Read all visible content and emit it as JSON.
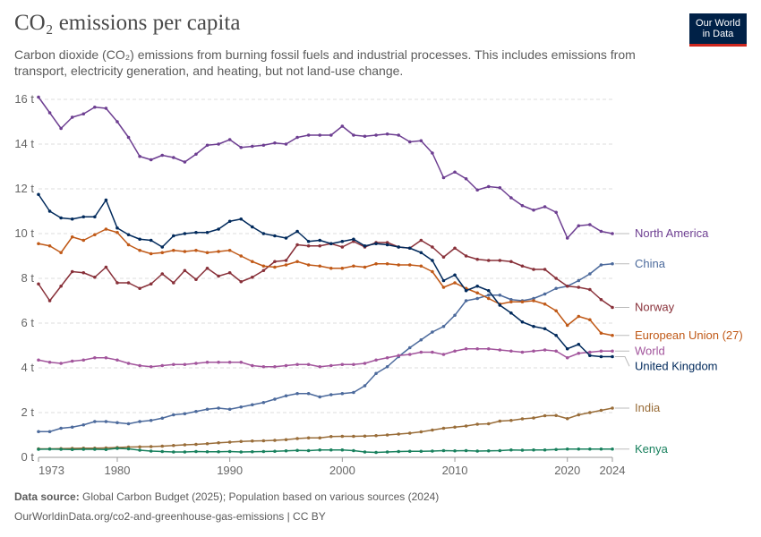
{
  "header": {
    "title": "CO₂ emissions per capita",
    "subtitle": "Carbon dioxide (CO₂) emissions from burning fossil fuels and industrial processes. This includes emissions from transport, electricity generation, and heating, but not land-use change.",
    "logo_line1": "Our World",
    "logo_line2": "in Data"
  },
  "footer": {
    "source_label": "Data source:",
    "source_text": "Global Carbon Budget (2025); Population based on various sources (2024)",
    "url_text": "OurWorldinData.org/co2-and-greenhouse-gas-emissions | CC BY"
  },
  "chart_data": {
    "type": "line",
    "title": "CO₂ emissions per capita",
    "xlabel": "",
    "ylabel": "",
    "xlim": [
      1973,
      2024
    ],
    "ylim": [
      0,
      16
    ],
    "x_ticks": [
      1973,
      1980,
      1990,
      2000,
      2010,
      2020,
      2024
    ],
    "y_ticks": [
      0,
      2,
      4,
      6,
      8,
      10,
      12,
      14,
      16
    ],
    "y_tick_labels": [
      "0 t",
      "2 t",
      "4 t",
      "6 t",
      "8 t",
      "10 t",
      "12 t",
      "14 t",
      "16 t"
    ],
    "grid": true,
    "legend": "right (direct labels)",
    "x": [
      1973,
      1974,
      1975,
      1976,
      1977,
      1978,
      1979,
      1980,
      1981,
      1982,
      1983,
      1984,
      1985,
      1986,
      1987,
      1988,
      1989,
      1990,
      1991,
      1992,
      1993,
      1994,
      1995,
      1996,
      1997,
      1998,
      1999,
      2000,
      2001,
      2002,
      2003,
      2004,
      2005,
      2006,
      2007,
      2008,
      2009,
      2010,
      2011,
      2012,
      2013,
      2014,
      2015,
      2016,
      2017,
      2018,
      2019,
      2020,
      2021,
      2022,
      2023,
      2024
    ],
    "series": [
      {
        "name": "North America",
        "color": "#6d3e91",
        "values": [
          16.1,
          15.4,
          14.7,
          15.2,
          15.35,
          15.65,
          15.6,
          15.0,
          14.3,
          13.45,
          13.3,
          13.5,
          13.4,
          13.2,
          13.55,
          13.95,
          14.0,
          14.2,
          13.85,
          13.9,
          13.95,
          14.05,
          14.0,
          14.3,
          14.4,
          14.4,
          14.4,
          14.8,
          14.4,
          14.35,
          14.4,
          14.45,
          14.4,
          14.1,
          14.15,
          13.6,
          12.5,
          12.75,
          12.45,
          11.95,
          12.1,
          12.05,
          11.6,
          11.25,
          11.05,
          11.2,
          10.95,
          9.8,
          10.35,
          10.4,
          10.1,
          10.0
        ]
      },
      {
        "name": "China",
        "color": "#4c6a9c",
        "values": [
          1.15,
          1.15,
          1.3,
          1.35,
          1.45,
          1.6,
          1.6,
          1.55,
          1.5,
          1.6,
          1.65,
          1.75,
          1.9,
          1.95,
          2.05,
          2.15,
          2.2,
          2.15,
          2.25,
          2.35,
          2.45,
          2.6,
          2.75,
          2.85,
          2.85,
          2.7,
          2.8,
          2.85,
          2.9,
          3.2,
          3.75,
          4.05,
          4.5,
          4.9,
          5.25,
          5.6,
          5.85,
          6.35,
          7.0,
          7.1,
          7.25,
          7.25,
          7.05,
          7.0,
          7.1,
          7.3,
          7.55,
          7.65,
          7.9,
          8.2,
          8.6,
          8.65
        ]
      },
      {
        "name": "Norway",
        "color": "#883039",
        "values": [
          7.75,
          7.0,
          7.65,
          8.3,
          8.25,
          8.05,
          8.5,
          7.8,
          7.8,
          7.55,
          7.75,
          8.2,
          7.8,
          8.35,
          7.95,
          8.45,
          8.1,
          8.25,
          7.85,
          8.05,
          8.35,
          8.75,
          8.8,
          9.5,
          9.45,
          9.45,
          9.55,
          9.4,
          9.65,
          9.4,
          9.6,
          9.6,
          9.4,
          9.35,
          9.7,
          9.4,
          8.95,
          9.35,
          9.0,
          8.85,
          8.8,
          8.8,
          8.75,
          8.55,
          8.4,
          8.4,
          8.0,
          7.65,
          7.6,
          7.5,
          7.05,
          6.7
        ]
      },
      {
        "name": "European Union (27)",
        "color": "#c05917",
        "values": [
          9.55,
          9.45,
          9.15,
          9.85,
          9.7,
          9.95,
          10.2,
          10.05,
          9.5,
          9.25,
          9.1,
          9.15,
          9.25,
          9.2,
          9.25,
          9.15,
          9.2,
          9.25,
          9.0,
          8.75,
          8.55,
          8.5,
          8.6,
          8.75,
          8.6,
          8.55,
          8.45,
          8.45,
          8.55,
          8.5,
          8.65,
          8.65,
          8.6,
          8.6,
          8.55,
          8.3,
          7.6,
          7.8,
          7.55,
          7.35,
          7.1,
          6.85,
          6.95,
          6.95,
          7.0,
          6.85,
          6.55,
          5.9,
          6.3,
          6.15,
          5.55,
          5.45
        ]
      },
      {
        "name": "World",
        "color": "#a2559c",
        "values": [
          4.35,
          4.25,
          4.2,
          4.3,
          4.35,
          4.45,
          4.45,
          4.35,
          4.2,
          4.1,
          4.05,
          4.1,
          4.15,
          4.15,
          4.2,
          4.25,
          4.25,
          4.25,
          4.25,
          4.1,
          4.05,
          4.05,
          4.1,
          4.15,
          4.15,
          4.05,
          4.1,
          4.15,
          4.15,
          4.2,
          4.35,
          4.45,
          4.55,
          4.6,
          4.7,
          4.7,
          4.6,
          4.75,
          4.85,
          4.85,
          4.85,
          4.8,
          4.75,
          4.7,
          4.75,
          4.8,
          4.75,
          4.45,
          4.65,
          4.7,
          4.75,
          4.75
        ]
      },
      {
        "name": "United Kingdom",
        "color": "#00295b",
        "values": [
          11.75,
          11.0,
          10.7,
          10.65,
          10.75,
          10.75,
          11.5,
          10.25,
          9.95,
          9.75,
          9.7,
          9.4,
          9.9,
          10.0,
          10.05,
          10.05,
          10.2,
          10.55,
          10.65,
          10.3,
          10.0,
          9.9,
          9.8,
          10.1,
          9.65,
          9.7,
          9.55,
          9.65,
          9.75,
          9.45,
          9.55,
          9.5,
          9.4,
          9.35,
          9.15,
          8.8,
          7.9,
          8.15,
          7.45,
          7.65,
          7.45,
          6.8,
          6.45,
          6.05,
          5.85,
          5.75,
          5.45,
          4.85,
          5.05,
          4.55,
          4.5,
          4.5
        ]
      },
      {
        "name": "India",
        "color": "#996d39",
        "values": [
          0.38,
          0.38,
          0.39,
          0.4,
          0.41,
          0.41,
          0.42,
          0.44,
          0.46,
          0.47,
          0.48,
          0.5,
          0.53,
          0.56,
          0.58,
          0.61,
          0.65,
          0.68,
          0.71,
          0.73,
          0.74,
          0.76,
          0.79,
          0.84,
          0.87,
          0.87,
          0.93,
          0.94,
          0.94,
          0.95,
          0.97,
          1.0,
          1.04,
          1.08,
          1.14,
          1.22,
          1.3,
          1.35,
          1.4,
          1.48,
          1.5,
          1.62,
          1.65,
          1.72,
          1.76,
          1.86,
          1.87,
          1.73,
          1.9,
          2.0,
          2.1,
          2.2
        ]
      },
      {
        "name": "Kenya",
        "color": "#18805d",
        "values": [
          0.36,
          0.37,
          0.36,
          0.35,
          0.36,
          0.36,
          0.35,
          0.4,
          0.38,
          0.32,
          0.28,
          0.26,
          0.24,
          0.24,
          0.26,
          0.25,
          0.25,
          0.26,
          0.24,
          0.25,
          0.26,
          0.27,
          0.29,
          0.31,
          0.3,
          0.33,
          0.33,
          0.33,
          0.3,
          0.24,
          0.22,
          0.24,
          0.26,
          0.27,
          0.27,
          0.28,
          0.3,
          0.29,
          0.3,
          0.28,
          0.29,
          0.3,
          0.33,
          0.32,
          0.33,
          0.33,
          0.35,
          0.37,
          0.37,
          0.37,
          0.37,
          0.37
        ]
      }
    ]
  }
}
